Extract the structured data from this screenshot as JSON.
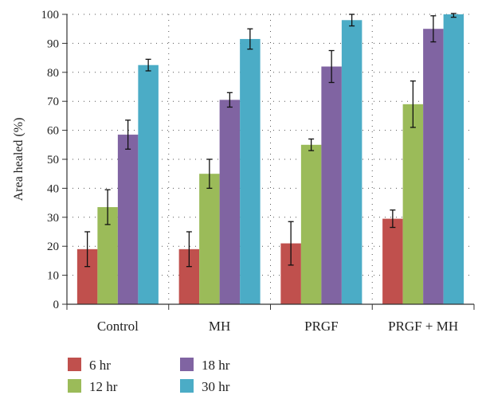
{
  "chart_data": {
    "type": "bar",
    "categories": [
      "Control",
      "MH",
      "PRGF",
      "PRGF + MH"
    ],
    "series": [
      {
        "name": "6 hr",
        "color": "#c0504d",
        "values": [
          19,
          19,
          21,
          29.5
        ],
        "errors": [
          6,
          6,
          7.5,
          3
        ]
      },
      {
        "name": "12 hr",
        "color": "#9bbb59",
        "values": [
          33.5,
          45,
          55,
          69
        ],
        "errors": [
          6,
          5,
          2,
          8
        ]
      },
      {
        "name": "18 hr",
        "color": "#8064a2",
        "values": [
          58.5,
          70.5,
          82,
          95
        ],
        "errors": [
          5,
          2.5,
          5.5,
          4.5
        ]
      },
      {
        "name": "30 hr",
        "color": "#4bacc6",
        "values": [
          82.5,
          91.5,
          98,
          100
        ],
        "errors": [
          2,
          3.5,
          2,
          1
        ]
      }
    ],
    "ylabel": "Area healed (%)",
    "xlabel": "",
    "ylim": [
      0,
      100
    ],
    "yticks": [
      0,
      10,
      20,
      30,
      40,
      50,
      60,
      70,
      80,
      90,
      100
    ],
    "grid": "dotted horizontal and vertical",
    "error_bars": true,
    "legend_position": "bottom-left"
  }
}
